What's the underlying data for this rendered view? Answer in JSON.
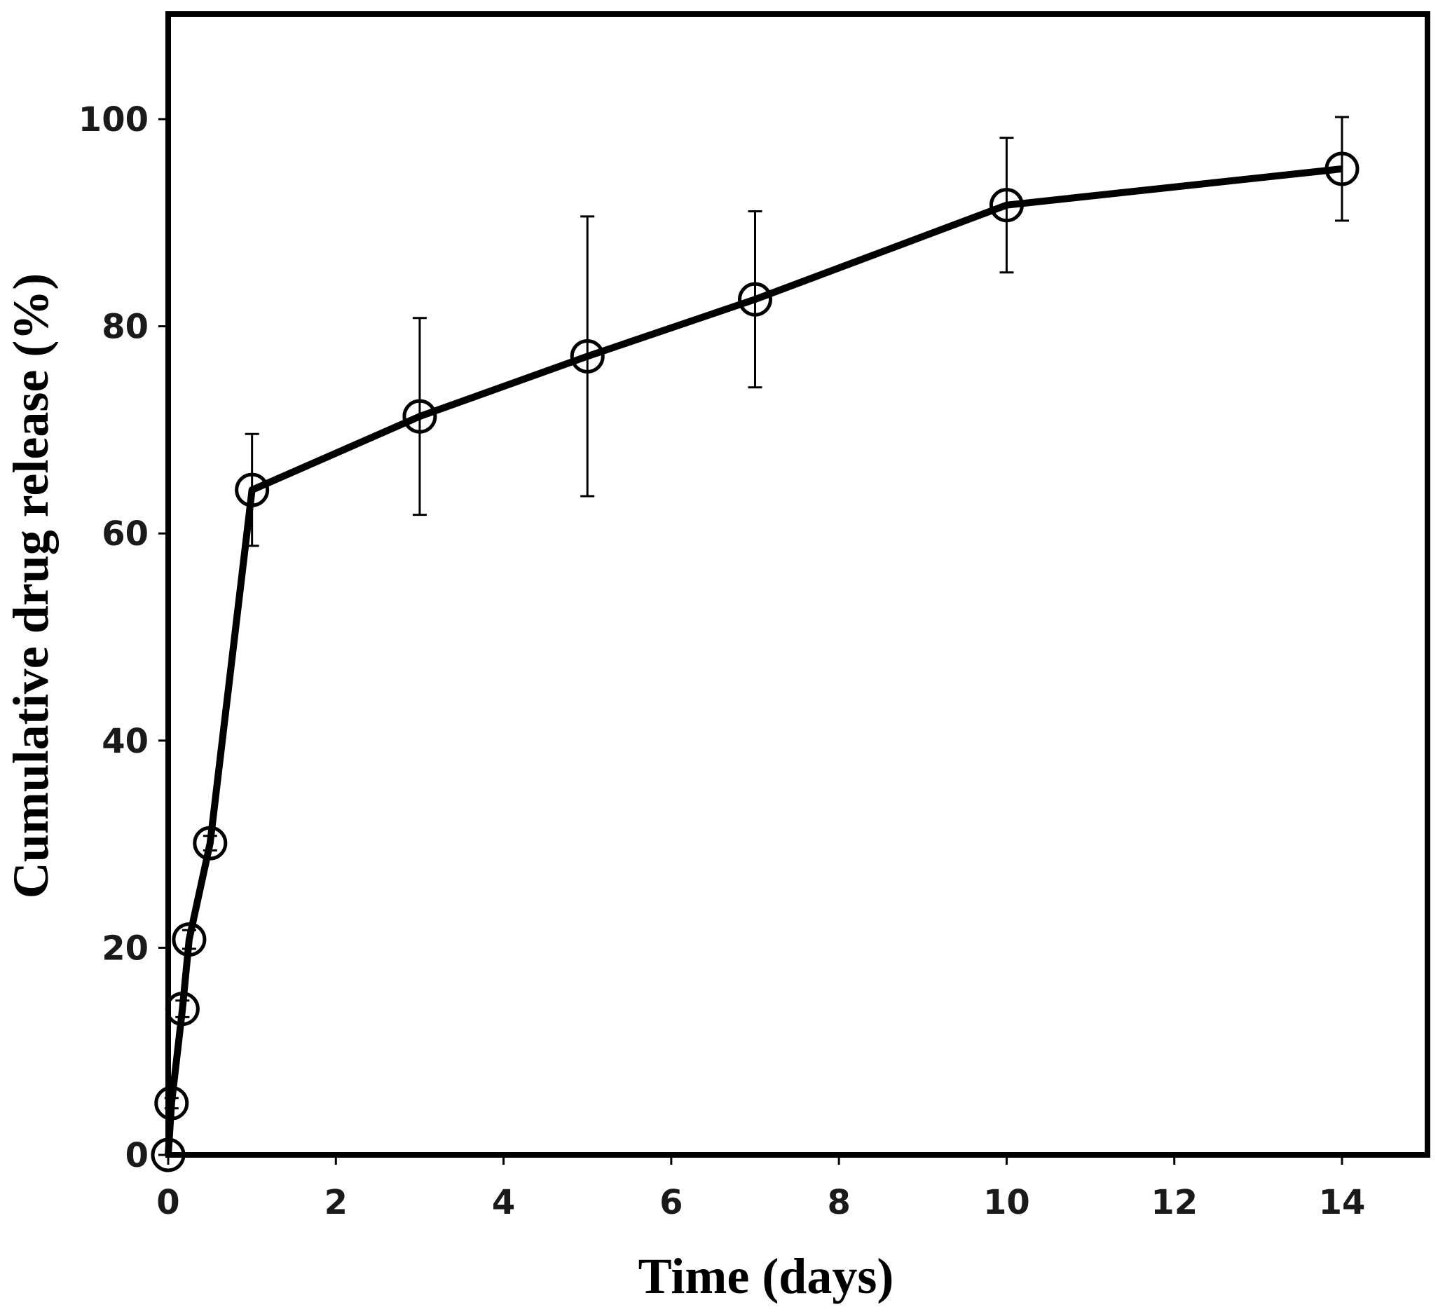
{
  "chart_data": {
    "type": "line",
    "title": "",
    "xlabel": "Time (days)",
    "ylabel": "Cumulative drug release (%)",
    "xlim": [
      0,
      15
    ],
    "ylim": [
      0,
      110
    ],
    "xticks": [
      0,
      2,
      4,
      6,
      8,
      10,
      12,
      14
    ],
    "yticks": [
      0,
      20,
      40,
      60,
      80,
      100
    ],
    "xtick_labels": [
      "0",
      "2",
      "4",
      "6",
      "8",
      "10",
      "12",
      "14"
    ],
    "ytick_labels": [
      "0",
      "20",
      "40",
      "60",
      "80",
      "100"
    ],
    "grid": false,
    "legend": null,
    "series": [
      {
        "name": "Cumulative drug release",
        "marker": "open-circle",
        "x": [
          0,
          0.04,
          0.17,
          0.25,
          0.5,
          1,
          3,
          5,
          7,
          10,
          14
        ],
        "y": [
          0,
          5.0,
          14.1,
          20.8,
          30.1,
          64.2,
          71.3,
          77.1,
          82.6,
          91.7,
          95.2
        ],
        "error": [
          0,
          0.5,
          0.8,
          0.9,
          0.7,
          5.4,
          9.5,
          13.5,
          8.5,
          6.5,
          5.0
        ]
      }
    ]
  },
  "colors": {
    "line": "#000000",
    "axis": "#000000",
    "tick_text": "#1a1a1a",
    "background": "#ffffff"
  }
}
